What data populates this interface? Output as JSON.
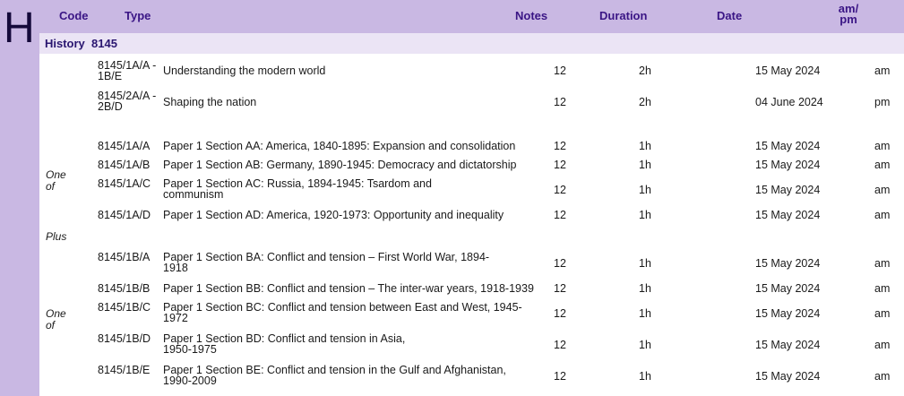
{
  "section_letter": "H",
  "headers": {
    "code": "Code",
    "type": "Type",
    "notes": "Notes",
    "duration": "Duration",
    "date": "Date",
    "ampm": "am/ pm"
  },
  "subject": {
    "title": "History  8145"
  },
  "side_labels": {
    "one_of_1": "One of",
    "plus": "Plus",
    "one_of_2": "One of"
  },
  "rows": [
    {
      "code": "8145/1A/A - 1B/E",
      "type": "Understanding the modern world",
      "notes": "12",
      "duration": "2h",
      "date": "15 May 2024",
      "ampm": "am"
    },
    {
      "code": "8145/2A/A - 2B/D",
      "type": "Shaping the nation",
      "notes": "12",
      "duration": "2h",
      "date": "04 June 2024",
      "ampm": "pm"
    },
    {
      "code": "8145/1A/A",
      "type": "Paper 1 Section AA: America, 1840-1895: Expansion and consolidation",
      "notes": "12",
      "duration": "1h",
      "date": "15 May 2024",
      "ampm": "am"
    },
    {
      "code": "8145/1A/B",
      "type": "Paper 1 Section AB: Germany, 1890-1945: Democracy and dictatorship",
      "notes": "12",
      "duration": "1h",
      "date": "15 May 2024",
      "ampm": "am"
    },
    {
      "code": "8145/1A/C",
      "type": "Paper 1 Section AC: Russia, 1894-1945: Tsardom and communism",
      "notes": "12",
      "duration": "1h",
      "date": "15 May 2024",
      "ampm": "am"
    },
    {
      "code": "8145/1A/D",
      "type": "Paper 1 Section AD: America, 1920-1973: Opportunity and inequality",
      "notes": "12",
      "duration": "1h",
      "date": "15 May 2024",
      "ampm": "am"
    },
    {
      "code": "8145/1B/A",
      "type": "Paper 1 Section BA: Conflict and tension – First World War, 1894-1918",
      "notes": "12",
      "duration": "1h",
      "date": "15 May 2024",
      "ampm": "am"
    },
    {
      "code": "8145/1B/B",
      "type": "Paper 1 Section BB: Conflict and tension – The inter-war years, 1918-1939",
      "notes": "12",
      "duration": "1h",
      "date": "15 May 2024",
      "ampm": "am"
    },
    {
      "code": "8145/1B/C",
      "type": "Paper 1 Section BC: Conflict and tension between East and West, 1945-1972",
      "notes": "12",
      "duration": "1h",
      "date": "15 May 2024",
      "ampm": "am"
    },
    {
      "code": "8145/1B/D",
      "type": "Paper 1 Section BD: Conflict and tension in Asia, 1950-1975",
      "notes": "12",
      "duration": "1h",
      "date": "15 May 2024",
      "ampm": "am"
    },
    {
      "code": "8145/1B/E",
      "type": "Paper 1 Section BE: Conflict and tension in the Gulf and Afghanistan, 1990-2009",
      "notes": "12",
      "duration": "1h",
      "date": "15 May 2024",
      "ampm": "am"
    }
  ]
}
